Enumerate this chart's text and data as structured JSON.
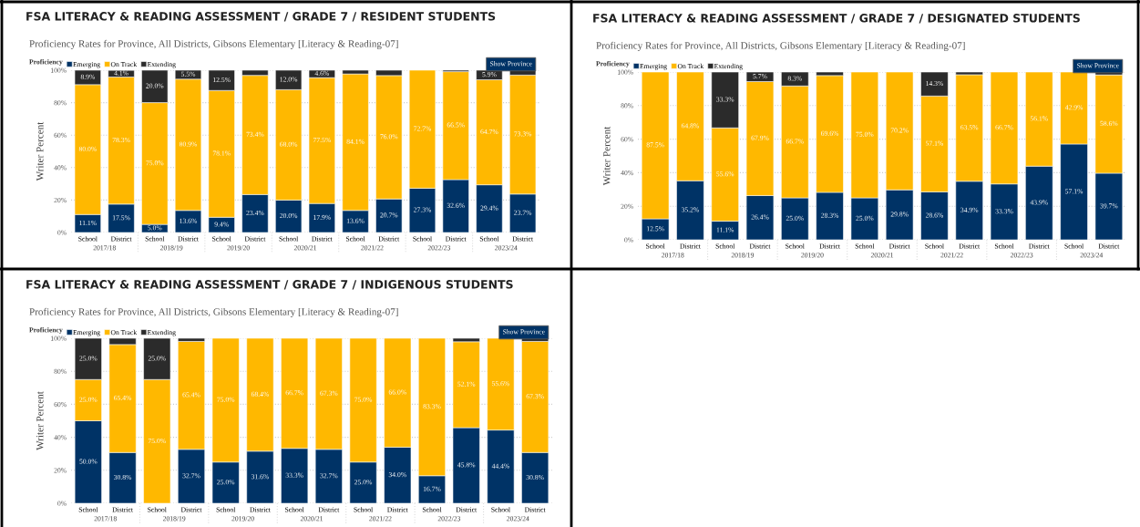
{
  "chart_data": [
    {
      "type": "bar",
      "stacked": true,
      "title": "FSA LITERACY & READING ASSESSMENT / GRADE 7 / RESIDENT STUDENTS",
      "subtitle": "Proficiency Rates for Province, All Districts, Gibsons Elementary [Literacy & Reading-07]",
      "ylabel": "Writer Percent",
      "legend_title": "Proficiency",
      "legend": "top left",
      "grid": "y",
      "categories": [
        "School",
        "District",
        "School",
        "District",
        "School",
        "District",
        "School",
        "District",
        "School",
        "District",
        "School",
        "District",
        "School",
        "District"
      ],
      "annotations": [
        "2017/18",
        "2018/19",
        "2019/20",
        "2020/21",
        "2021/22",
        "2022/23",
        "2023/24",
        "Show Province"
      ],
      "ylim": [
        0,
        100
      ],
      "yticks": [
        {
          "value": 0,
          "label": "0%"
        },
        {
          "value": 20,
          "label": "20%"
        },
        {
          "value": 40,
          "label": "40%"
        },
        {
          "value": 60,
          "label": "60%"
        },
        {
          "value": 80,
          "label": "80%"
        },
        {
          "value": 100,
          "label": "100%"
        }
      ],
      "series": [
        {
          "name": "Emerging",
          "color": "#003366",
          "values": [
            11.1,
            17.5,
            5.0,
            13.6,
            9.4,
            23.4,
            20.0,
            17.9,
            13.6,
            20.7,
            27.3,
            32.6,
            29.4,
            23.7
          ],
          "value_labels": [
            "11.1%",
            "17.5%",
            "5.0%",
            "13.6%",
            "9.4%",
            "23.4%",
            "20.0%",
            "17.9%",
            "13.6%",
            "20.7%",
            "27.3%",
            "32.6%",
            "29.4%",
            "23.7%"
          ]
        },
        {
          "name": "On Track",
          "color": "#ffb800",
          "values": [
            80.0,
            78.3,
            75.0,
            80.9,
            78.1,
            73.4,
            68.0,
            77.5,
            84.1,
            76.0,
            72.7,
            66.5,
            64.7,
            73.3
          ],
          "value_labels": [
            "80.0%",
            "78.3%",
            "75.0%",
            "80.9%",
            "78.1%",
            "73.4%",
            "68.0%",
            "77.5%",
            "84.1%",
            "76.0%",
            "72.7%",
            "66.5%",
            "64.7%",
            "73.3%"
          ]
        },
        {
          "name": "Extending",
          "color": "#2b2b2b",
          "values": [
            8.9,
            4.1,
            20.0,
            5.5,
            12.5,
            3.2,
            12.0,
            4.6,
            2.3,
            3.3,
            null,
            0.9,
            5.9,
            3.0
          ],
          "value_labels": [
            "8.9%",
            "4.1%",
            "20.0%",
            "5.5%",
            "12.5%",
            null,
            "12.0%",
            "4.6%",
            null,
            null,
            null,
            null,
            "5.9%",
            null
          ]
        }
      ]
    },
    {
      "type": "bar",
      "stacked": true,
      "title": "FSA LITERACY & READING ASSESSMENT / GRADE 7 / DESIGNATED STUDENTS",
      "subtitle": "Proficiency Rates for Province, All Districts, Gibsons Elementary [Literacy & Reading-07]",
      "ylabel": "Writer Percent",
      "legend_title": "Proficiency",
      "legend": "top left",
      "grid": "y",
      "categories": [
        "School",
        "District",
        "School",
        "District",
        "School",
        "District",
        "School",
        "District",
        "School",
        "District",
        "School",
        "District",
        "School",
        "District"
      ],
      "annotations": [
        "2017/18",
        "2018/19",
        "2019/20",
        "2020/21",
        "2021/22",
        "2022/23",
        "2023/24",
        "Show Province"
      ],
      "ylim": [
        0,
        100
      ],
      "yticks": [
        {
          "value": 0,
          "label": "0%"
        },
        {
          "value": 20,
          "label": "20%"
        },
        {
          "value": 40,
          "label": "40%"
        },
        {
          "value": 60,
          "label": "60%"
        },
        {
          "value": 80,
          "label": "80%"
        },
        {
          "value": 100,
          "label": "100%"
        }
      ],
      "series": [
        {
          "name": "Emerging",
          "color": "#003366",
          "values": [
            12.5,
            35.2,
            11.1,
            26.4,
            25.0,
            28.3,
            25.0,
            29.8,
            28.6,
            34.9,
            33.3,
            43.9,
            57.1,
            39.7
          ],
          "value_labels": [
            "12.5%",
            "35.2%",
            "11.1%",
            "26.4%",
            "25.0%",
            "28.3%",
            "25.0%",
            "29.8%",
            "28.6%",
            "34.9%",
            "33.3%",
            "43.9%",
            "57.1%",
            "39.7%"
          ]
        },
        {
          "name": "On Track",
          "color": "#ffb800",
          "values": [
            87.5,
            64.8,
            55.6,
            67.9,
            66.7,
            69.6,
            75.0,
            70.2,
            57.1,
            63.5,
            66.7,
            56.1,
            42.9,
            58.6
          ],
          "value_labels": [
            "87.5%",
            "64.8%",
            "55.6%",
            "67.9%",
            "66.7%",
            "69.6%",
            "75.0%",
            "70.2%",
            "57.1%",
            "63.5%",
            "66.7%",
            "56.1%",
            "42.9%",
            "58.6%"
          ]
        },
        {
          "name": "Extending",
          "color": "#2b2b2b",
          "values": [
            null,
            null,
            33.3,
            5.7,
            8.3,
            2.1,
            null,
            null,
            14.3,
            1.6,
            null,
            null,
            null,
            1.7
          ],
          "value_labels": [
            null,
            null,
            "33.3%",
            "5.7%",
            "8.3%",
            null,
            null,
            null,
            "14.3%",
            null,
            null,
            null,
            null,
            null
          ]
        }
      ]
    },
    {
      "type": "bar",
      "stacked": true,
      "title": "FSA LITERACY & READING ASSESSMENT / GRADE 7 / INDIGENOUS STUDENTS",
      "subtitle": "Proficiency Rates for Province, All Districts, Gibsons Elementary [Literacy & Reading-07]",
      "ylabel": "Writer Percent",
      "legend_title": "Proficiency",
      "legend": "top left",
      "grid": "y",
      "categories": [
        "School",
        "District",
        "School",
        "District",
        "School",
        "District",
        "School",
        "District",
        "School",
        "District",
        "School",
        "District",
        "School",
        "District"
      ],
      "annotations": [
        "2017/18",
        "2018/19",
        "2019/20",
        "2020/21",
        "2021/22",
        "2022/23",
        "2023/24",
        "Show Province"
      ],
      "ylim": [
        0,
        100
      ],
      "yticks": [
        {
          "value": 0,
          "label": "0%"
        },
        {
          "value": 20,
          "label": "20%"
        },
        {
          "value": 40,
          "label": "40%"
        },
        {
          "value": 60,
          "label": "60%"
        },
        {
          "value": 80,
          "label": "80%"
        },
        {
          "value": 100,
          "label": "100%"
        }
      ],
      "series": [
        {
          "name": "Emerging",
          "color": "#003366",
          "values": [
            50.0,
            30.8,
            null,
            32.7,
            25.0,
            31.6,
            33.3,
            32.7,
            25.0,
            34.0,
            16.7,
            45.8,
            44.4,
            30.8
          ],
          "value_labels": [
            "50.0%",
            "30.8%",
            null,
            "32.7%",
            "25.0%",
            "31.6%",
            "33.3%",
            "32.7%",
            "25.0%",
            "34.0%",
            "16.7%",
            "45.8%",
            "44.4%",
            "30.8%"
          ]
        },
        {
          "name": "On Track",
          "color": "#ffb800",
          "values": [
            25.0,
            65.4,
            75.0,
            65.4,
            75.0,
            68.4,
            66.7,
            67.3,
            75.0,
            66.0,
            83.3,
            52.1,
            55.6,
            67.3
          ],
          "value_labels": [
            "25.0%",
            "65.4%",
            "75.0%",
            "65.4%",
            "75.0%",
            "68.4%",
            "66.7%",
            "67.3%",
            "75.0%",
            "66.0%",
            "83.3%",
            "52.1%",
            "55.6%",
            "67.3%"
          ]
        },
        {
          "name": "Extending",
          "color": "#2b2b2b",
          "values": [
            25.0,
            3.8,
            25.0,
            1.9,
            null,
            null,
            null,
            null,
            null,
            null,
            null,
            2.1,
            null,
            1.9
          ],
          "value_labels": [
            "25.0%",
            null,
            "25.0%",
            null,
            null,
            null,
            null,
            null,
            null,
            null,
            null,
            null,
            null,
            null
          ]
        }
      ]
    }
  ]
}
